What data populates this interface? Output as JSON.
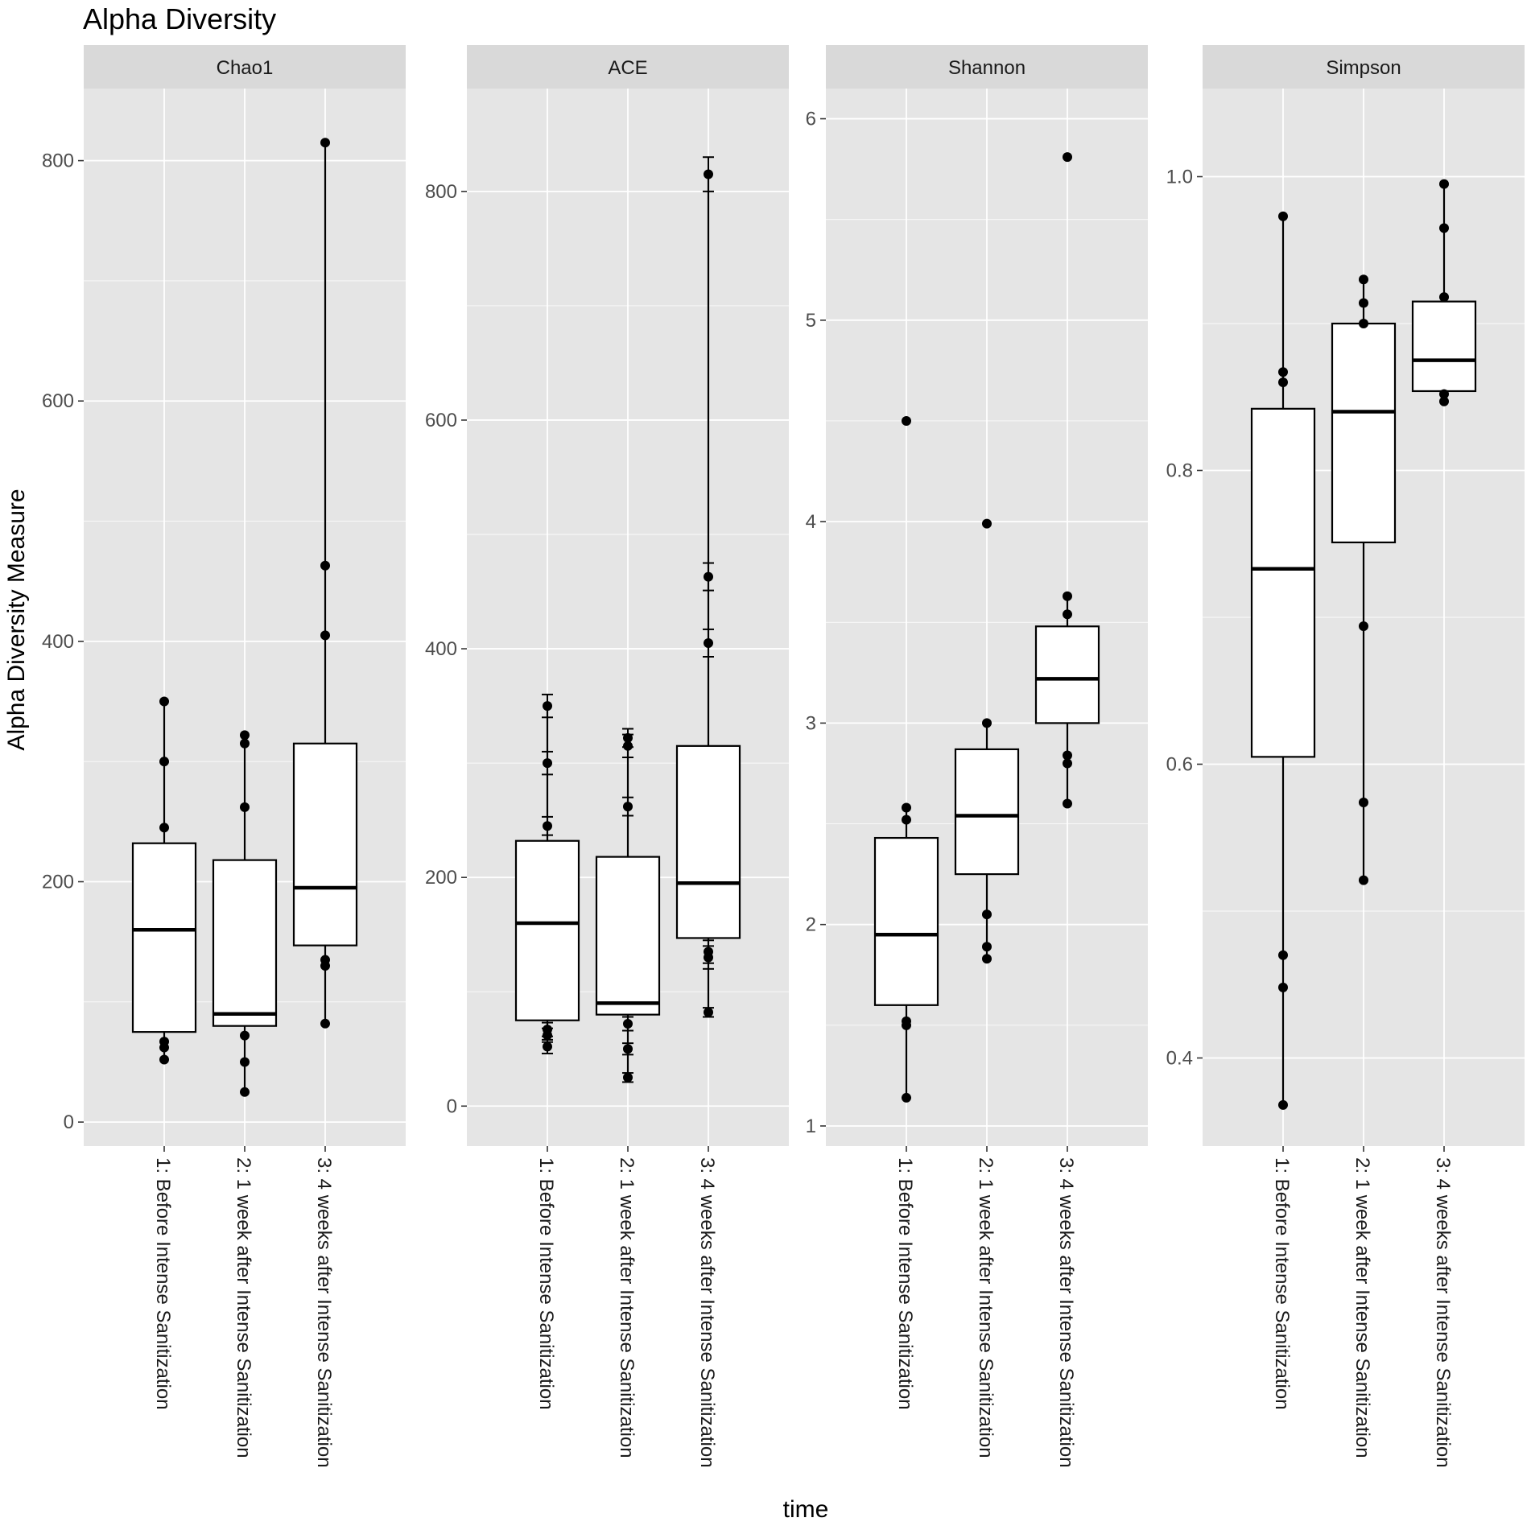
{
  "chart_data": {
    "type": "box",
    "title": "Alpha Diversity",
    "xlabel": "time",
    "ylabel": "Alpha Diversity Measure",
    "categories": [
      "1: Before Intense Sanitization",
      "2: 1 week after Intense Sanitization",
      "3: 4 weeks after Intense Sanitization"
    ],
    "panels": [
      {
        "name": "Chao1",
        "ylim": [
          -20,
          860
        ],
        "ticks": [
          0,
          200,
          400,
          600,
          800
        ],
        "tick_labels": [
          "0",
          "200",
          "400",
          "600",
          "800"
        ],
        "error_bars": false,
        "boxes": [
          {
            "q1": 75,
            "median": 160,
            "q3": 232,
            "whisker_low": 52,
            "whisker_high": 350
          },
          {
            "q1": 80,
            "median": 90,
            "q3": 218,
            "whisker_low": 25,
            "whisker_high": 322
          },
          {
            "q1": 147,
            "median": 195,
            "q3": 315,
            "whisker_low": 82,
            "whisker_high": 815
          }
        ],
        "points": [
          [
            52,
            62,
            67,
            245,
            300,
            350
          ],
          [
            25,
            50,
            72,
            262,
            315,
            322
          ],
          [
            82,
            130,
            135,
            405,
            463,
            815
          ]
        ]
      },
      {
        "name": "ACE",
        "ylim": [
          -35,
          890
        ],
        "ticks": [
          0,
          200,
          400,
          600,
          800
        ],
        "tick_labels": [
          "0",
          "200",
          "400",
          "600",
          "800"
        ],
        "error_bars": true,
        "boxes": [
          {
            "q1": 75,
            "median": 160,
            "q3": 232,
            "whisker_low": 52,
            "whisker_high": 350
          },
          {
            "q1": 80,
            "median": 90,
            "q3": 218,
            "whisker_low": 25,
            "whisker_high": 322
          },
          {
            "q1": 147,
            "median": 195,
            "q3": 315,
            "whisker_low": 82,
            "whisker_high": 815
          }
        ],
        "points": [
          [
            52,
            62,
            67,
            245,
            300,
            350
          ],
          [
            25,
            50,
            72,
            262,
            315,
            322
          ],
          [
            82,
            130,
            135,
            405,
            463,
            815
          ]
        ],
        "errors": [
          [
            6,
            6,
            6,
            8,
            10,
            10
          ],
          [
            4,
            5,
            6,
            8,
            10,
            8
          ],
          [
            4,
            10,
            10,
            12,
            12,
            15
          ]
        ]
      },
      {
        "name": "Shannon",
        "ylim": [
          0.9,
          6.15
        ],
        "ticks": [
          1,
          2,
          3,
          4,
          5,
          6
        ],
        "tick_labels": [
          "1",
          "2",
          "3",
          "4",
          "5",
          "6"
        ],
        "error_bars": false,
        "boxes": [
          {
            "q1": 1.6,
            "median": 1.95,
            "q3": 2.43,
            "whisker_low": 1.14,
            "whisker_high": 2.58
          },
          {
            "q1": 2.25,
            "median": 2.54,
            "q3": 2.87,
            "whisker_low": 1.83,
            "whisker_high": 3.0
          },
          {
            "q1": 3.0,
            "median": 3.22,
            "q3": 3.48,
            "whisker_low": 2.6,
            "whisker_high": 3.63
          }
        ],
        "points": [
          [
            1.14,
            1.5,
            1.52,
            2.52,
            2.58,
            4.5
          ],
          [
            1.83,
            1.89,
            2.05,
            3.0,
            3.99
          ],
          [
            2.6,
            2.8,
            2.84,
            3.54,
            3.63,
            5.81
          ]
        ]
      },
      {
        "name": "Simpson",
        "ylim": [
          0.34,
          1.06
        ],
        "ticks": [
          0.4,
          0.6,
          0.8,
          1.0
        ],
        "tick_labels": [
          "0.4",
          "0.6",
          "0.8",
          "1.0"
        ],
        "error_bars": false,
        "boxes": [
          {
            "q1": 0.605,
            "median": 0.733,
            "q3": 0.842,
            "whisker_low": 0.368,
            "whisker_high": 0.973
          },
          {
            "q1": 0.751,
            "median": 0.84,
            "q3": 0.9,
            "whisker_low": 0.521,
            "whisker_high": 0.93
          },
          {
            "q1": 0.854,
            "median": 0.875,
            "q3": 0.915,
            "whisker_low": 0.847,
            "whisker_high": 0.995
          }
        ],
        "points": [
          [
            0.368,
            0.448,
            0.47,
            0.86,
            0.867,
            0.973
          ],
          [
            0.521,
            0.574,
            0.694,
            0.9,
            0.914,
            0.93
          ],
          [
            0.847,
            0.852,
            0.918,
            0.965,
            0.995
          ]
        ]
      }
    ]
  }
}
